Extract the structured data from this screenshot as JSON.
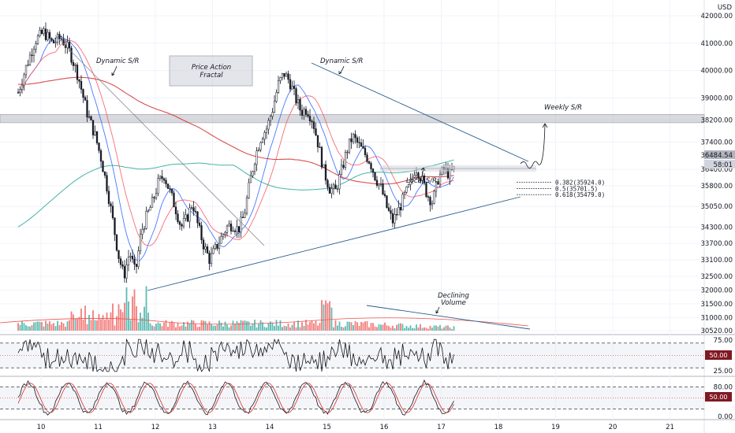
{
  "chart_data": [
    {
      "type": "candlestick",
      "title": "",
      "currency": "USD",
      "xlabel": "",
      "ylabel": "",
      "ylim": [
        30300,
        42300
      ],
      "x_ticks": [
        "10",
        "11",
        "12",
        "13",
        "14",
        "15",
        "16",
        "17",
        "18",
        "19",
        "20",
        "21"
      ],
      "y_ticks": [
        "42000.00",
        "41000.00",
        "40000.00",
        "39000.00",
        "38200.00",
        "37400.00",
        "36400.00",
        "35800.00",
        "35050.00",
        "34300.00",
        "33700.00",
        "33100.00",
        "32500.00",
        "32000.00",
        "31500.00",
        "31000.00",
        "30520.00"
      ],
      "last_price": "36484.54",
      "last_price_color": "#131722",
      "countdown": "58:01",
      "grid": true,
      "candle_up_color": "#131722",
      "candle_down_color": "#131722",
      "price_path": [
        [
          9.6,
          39200
        ],
        [
          9.75,
          40200
        ],
        [
          9.9,
          41100
        ],
        [
          10.05,
          41400
        ],
        [
          10.2,
          41000
        ],
        [
          10.35,
          41200
        ],
        [
          10.5,
          40700
        ],
        [
          10.65,
          39800
        ],
        [
          10.8,
          38500
        ],
        [
          10.95,
          37600
        ],
        [
          11.05,
          36800
        ],
        [
          11.15,
          35800
        ],
        [
          11.25,
          34600
        ],
        [
          11.35,
          33300
        ],
        [
          11.45,
          32500
        ],
        [
          11.55,
          33400
        ],
        [
          11.65,
          32600
        ],
        [
          11.75,
          34100
        ],
        [
          11.85,
          34700
        ],
        [
          11.95,
          35200
        ],
        [
          12.05,
          35900
        ],
        [
          12.15,
          36200
        ],
        [
          12.25,
          35600
        ],
        [
          12.35,
          35000
        ],
        [
          12.45,
          34300
        ],
        [
          12.55,
          34600
        ],
        [
          12.65,
          35200
        ],
        [
          12.75,
          34300
        ],
        [
          12.85,
          33600
        ],
        [
          12.95,
          33100
        ],
        [
          13.05,
          33500
        ],
        [
          13.15,
          33900
        ],
        [
          13.25,
          34300
        ],
        [
          13.35,
          34400
        ],
        [
          13.45,
          34200
        ],
        [
          13.55,
          34700
        ],
        [
          13.65,
          35900
        ],
        [
          13.75,
          36900
        ],
        [
          13.85,
          37600
        ],
        [
          13.95,
          37900
        ],
        [
          14.05,
          38600
        ],
        [
          14.15,
          39500
        ],
        [
          14.25,
          39900
        ],
        [
          14.35,
          39600
        ],
        [
          14.45,
          39000
        ],
        [
          14.55,
          38500
        ],
        [
          14.65,
          38600
        ],
        [
          14.75,
          38200
        ],
        [
          14.85,
          37300
        ],
        [
          14.95,
          36300
        ],
        [
          15.05,
          35700
        ],
        [
          15.15,
          35600
        ],
        [
          15.25,
          36300
        ],
        [
          15.35,
          37100
        ],
        [
          15.45,
          37600
        ],
        [
          15.55,
          37300
        ],
        [
          15.65,
          37000
        ],
        [
          15.75,
          36700
        ],
        [
          15.85,
          36100
        ],
        [
          15.95,
          35700
        ],
        [
          16.05,
          35000
        ],
        [
          16.15,
          34500
        ],
        [
          16.25,
          34900
        ],
        [
          16.35,
          35400
        ],
        [
          16.45,
          35800
        ],
        [
          16.55,
          36500
        ],
        [
          16.65,
          36100
        ],
        [
          16.75,
          35500
        ],
        [
          16.85,
          35200
        ],
        [
          16.95,
          36100
        ],
        [
          17.05,
          36400
        ],
        [
          17.15,
          36200
        ],
        [
          17.25,
          36484
        ]
      ],
      "series": [
        {
          "name": "",
          "color": "#2962ff",
          "type": "ma-fast"
        },
        {
          "name": "",
          "color": "#f7525f",
          "type": "ma-mid"
        },
        {
          "name": "",
          "color": "#d32f2f",
          "type": "ma-200"
        },
        {
          "name": "",
          "color": "#26a69a",
          "type": "ma-slow"
        }
      ],
      "annotations": {
        "dynamic_sr_1": "Dynamic S/R",
        "dynamic_sr_2": "Dynamic S/R",
        "price_action_box": [
          "Price Action",
          "Fractal"
        ],
        "weekly_sr": "Weekly S/R",
        "local_sr": "Local S/R",
        "declining_volume": [
          "Declining",
          "Volume"
        ]
      },
      "fib_levels": [
        {
          "label": "0.382(35924.0)",
          "price": 35924.0
        },
        {
          "label": "0.5(35701.5)",
          "price": 35701.5
        },
        {
          "label": "0.618(35479.0)",
          "price": 35479.0
        }
      ],
      "weekly_band": [
        38100,
        38400
      ]
    },
    {
      "type": "bar",
      "title": "",
      "name": "volume",
      "up_color": "#26a69a",
      "down_color": "#ef5350"
    },
    {
      "type": "line",
      "title": "",
      "name": "rsi",
      "ylim": [
        20,
        80
      ],
      "y_ticks": [
        "75.00",
        "25.00"
      ],
      "midline_tag": "50.00",
      "bands": [
        70,
        30
      ],
      "line_color": "#131722"
    },
    {
      "type": "line",
      "title": "",
      "name": "stoch",
      "ylim": [
        0,
        100
      ],
      "y_ticks": [
        "80.00",
        "0.00"
      ],
      "midline_tag": "50.00",
      "bands": [
        80,
        20
      ],
      "line_colors": [
        "#131722",
        "#d32f2f"
      ]
    }
  ]
}
